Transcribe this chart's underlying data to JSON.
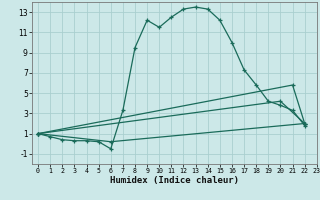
{
  "xlabel": "Humidex (Indice chaleur)",
  "bg_color": "#cce8e8",
  "grid_color": "#aacfcf",
  "line_color": "#1a6b5a",
  "xlim": [
    -0.5,
    23
  ],
  "ylim": [
    -2,
    14
  ],
  "xticks": [
    0,
    1,
    2,
    3,
    4,
    5,
    6,
    7,
    8,
    9,
    10,
    11,
    12,
    13,
    14,
    15,
    16,
    17,
    18,
    19,
    20,
    21,
    22,
    23
  ],
  "yticks": [
    -1,
    1,
    3,
    5,
    7,
    9,
    11,
    13
  ],
  "series": [
    {
      "x": [
        0,
        1,
        2,
        3,
        4,
        5,
        6,
        7,
        8,
        9,
        10,
        11,
        12,
        13,
        14,
        15,
        16,
        17,
        18,
        19,
        20,
        21,
        22
      ],
      "y": [
        1,
        0.7,
        0.4,
        0.3,
        0.3,
        0.2,
        -0.5,
        3.3,
        9.5,
        12.2,
        11.5,
        12.5,
        13.3,
        13.5,
        13.3,
        12.2,
        10.0,
        7.3,
        5.8,
        4.2,
        3.8,
        3.3,
        1.8
      ]
    },
    {
      "x": [
        0,
        6,
        22
      ],
      "y": [
        1,
        0.2,
        2.0
      ]
    },
    {
      "x": [
        0,
        20,
        22
      ],
      "y": [
        1,
        4.2,
        2.0
      ]
    },
    {
      "x": [
        0,
        21,
        22
      ],
      "y": [
        1,
        5.8,
        2.0
      ]
    }
  ]
}
